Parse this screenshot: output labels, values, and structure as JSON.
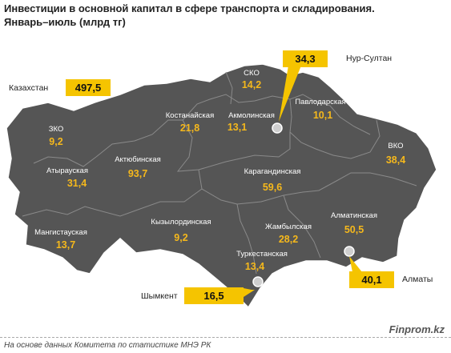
{
  "title_line1": "Инвестиции в основной капитал в сфере транспорта и складирования.",
  "title_line2": "Январь–июль (млрд тг)",
  "total": {
    "label": "Казахстан",
    "value": "497,5"
  },
  "regions": [
    {
      "name": "ЗКО",
      "value": "9,2"
    },
    {
      "name": "Атырауская",
      "value": "31,4"
    },
    {
      "name": "Мангистауская",
      "value": "13,7"
    },
    {
      "name": "Актюбинская",
      "value": "93,7"
    },
    {
      "name": "Костанайская",
      "value": "21,8"
    },
    {
      "name": "СКО",
      "value": "14,2"
    },
    {
      "name": "Акмолинская",
      "value": "13,1"
    },
    {
      "name": "Павлодарская",
      "value": "10,1"
    },
    {
      "name": "ВКО",
      "value": "38,4"
    },
    {
      "name": "Карагандинская",
      "value": "59,6"
    },
    {
      "name": "Кызылординская",
      "value": "9,2"
    },
    {
      "name": "Жамбылская",
      "value": "28,2"
    },
    {
      "name": "Алматинская",
      "value": "50,5"
    },
    {
      "name": "Туркестанская",
      "value": "13,4"
    }
  ],
  "cities": [
    {
      "name": "Нур-Султан",
      "value": "34,3"
    },
    {
      "name": "Алматы",
      "value": "40,1"
    },
    {
      "name": "Шымкент",
      "value": "16,5"
    }
  ],
  "colors": {
    "map_fill": "#555555",
    "region_border": "#8a8a8a",
    "accent": "#f5c400",
    "value_text": "#f5b81c"
  },
  "brand": "Finprom.kz",
  "source": "На основе данных  Комитета по статистике МНЭ РК"
}
